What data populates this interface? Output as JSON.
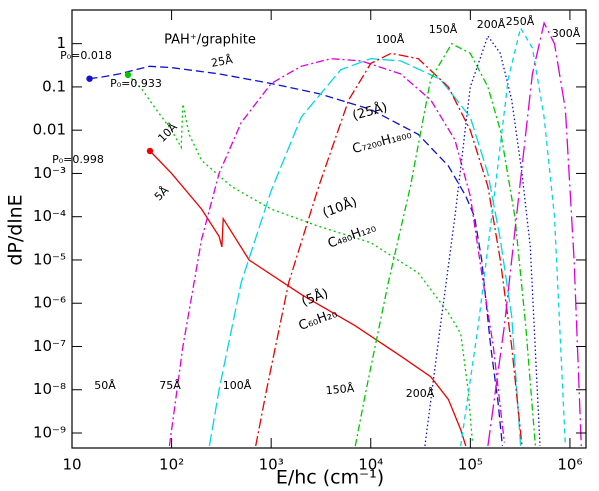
{
  "chart_data": {
    "type": "line",
    "xlabel": "E/hc   (cm⁻¹)",
    "ylabel": "dP/dlnE",
    "xscale": "log",
    "yscale": "log",
    "xlim": [
      10,
      1450000
    ],
    "ylim": [
      4.5e-10,
      6
    ],
    "xticks": [
      10,
      {
        "value": 100,
        "label": "10²"
      },
      {
        "value": 1000,
        "label": "10³"
      },
      {
        "value": 10000,
        "label": "10⁴"
      },
      {
        "value": 100000,
        "label": "10⁵"
      },
      {
        "value": 1000000,
        "label": "10⁶"
      }
    ],
    "yticks": [
      1,
      0.1,
      0.01,
      {
        "value": 0.001,
        "label": "10⁻³"
      },
      {
        "value": 0.0001,
        "label": "10⁻⁴"
      },
      {
        "value": 1e-05,
        "label": "10⁻⁵"
      },
      {
        "value": 1e-06,
        "label": "10⁻⁶"
      },
      {
        "value": 1e-07,
        "label": "10⁻⁷"
      },
      {
        "value": 1e-08,
        "label": "10⁻⁸"
      },
      {
        "value": 1e-09,
        "label": "10⁻⁹"
      }
    ],
    "series": [
      {
        "color": "#1010d0",
        "dash": "8,4",
        "start_marker": true,
        "x": [
          15,
          20,
          30,
          35,
          60,
          100,
          300,
          1000,
          3000,
          10000,
          30000,
          60000,
          90000,
          110000,
          130000,
          160000,
          190000,
          210000
        ],
        "values": [
          0.155,
          0.17,
          0.2,
          0.22,
          0.3,
          0.28,
          0.2,
          0.12,
          0.07,
          0.03,
          0.008,
          0.0015,
          0.0003,
          0.0001,
          1e-05,
          1e-07,
          5e-09,
          5e-10
        ]
      },
      {
        "color": "#00c800",
        "dash": "2,3",
        "start_marker": true,
        "x": [
          36.5,
          50,
          70,
          100,
          125,
          130,
          150,
          200,
          400,
          1000,
          3000,
          10000,
          30000,
          60000,
          80000,
          95000,
          105000
        ],
        "values": [
          0.19,
          0.09,
          0.03,
          0.01,
          0.004,
          0.04,
          0.008,
          0.002,
          0.0005,
          0.00015,
          6e-05,
          2.5e-05,
          5e-06,
          6e-07,
          2e-07,
          1e-08,
          6e-10
        ]
      },
      {
        "color": "#ee0000",
        "dash": "",
        "start_marker": true,
        "x": [
          60.7,
          100,
          200,
          300,
          320,
          330,
          600,
          2000,
          7000,
          20000,
          40000,
          60000,
          80000,
          90000
        ],
        "values": [
          0.0033,
          0.001,
          0.00015,
          3.5e-05,
          2e-05,
          9e-05,
          1e-05,
          1.6e-06,
          3e-07,
          6e-08,
          2e-08,
          6e-09,
          1.2e-09,
          5e-10
        ]
      },
      {
        "color": "#dd00dd",
        "dash": "8,3,2,3",
        "x": [
          95,
          130,
          200,
          300,
          500,
          1000,
          2000,
          4000,
          8000,
          20000,
          40000,
          70000,
          100000,
          130000,
          170000,
          220000
        ],
        "values": [
          5e-10,
          1e-07,
          3e-05,
          0.001,
          0.015,
          0.12,
          0.3,
          0.45,
          0.4,
          0.2,
          0.05,
          0.006,
          0.0003,
          5e-06,
          1e-07,
          6e-10
        ]
      },
      {
        "color": "#00d8e8",
        "dash": "12,4",
        "x": [
          240,
          300,
          500,
          1000,
          2000,
          5000,
          10000,
          20000,
          50000,
          100000,
          150000,
          200000,
          260000,
          320000
        ],
        "values": [
          5e-10,
          1e-08,
          3e-06,
          0.0004,
          0.02,
          0.25,
          0.45,
          0.4,
          0.15,
          0.02,
          0.001,
          3e-05,
          5e-07,
          5e-10
        ]
      },
      {
        "color": "#ee0000",
        "dash": "10,3,2,3",
        "x": [
          700,
          900,
          1500,
          3000,
          6000,
          10000,
          16000,
          30000,
          60000,
          100000,
          150000,
          200000,
          260000,
          330000
        ],
        "values": [
          5e-10,
          1e-08,
          3e-06,
          0.0005,
          0.05,
          0.35,
          0.6,
          0.45,
          0.1,
          0.01,
          0.0005,
          1e-05,
          1e-07,
          5e-10
        ]
      },
      {
        "color": "#00c800",
        "dash": "7,3,2,3",
        "x": [
          7000,
          9000,
          15000,
          25000,
          40000,
          65000,
          100000,
          150000,
          200000,
          280000,
          360000,
          450000
        ],
        "values": [
          5e-10,
          1e-08,
          3e-06,
          0.0005,
          0.15,
          1,
          0.6,
          0.1,
          0.01,
          0.0001,
          3e-07,
          5e-10
        ]
      },
      {
        "color": "#1010d0",
        "dash": "1.5,2.5",
        "x": [
          35000,
          50000,
          70000,
          100000,
          150000,
          200000,
          260000,
          330000,
          400000,
          500000
        ],
        "values": [
          5e-10,
          3e-07,
          0.0001,
          0.1,
          1.5,
          0.6,
          0.05,
          0.001,
          2e-05,
          5e-10
        ]
      },
      {
        "color": "#00d8e8",
        "dash": "5,4",
        "x": [
          80000,
          120000,
          170000,
          240000,
          320000,
          420000,
          550000,
          700000,
          900000
        ],
        "values": [
          5e-10,
          3e-07,
          0.0002,
          0.15,
          2.3,
          0.8,
          0.02,
          0.0001,
          5e-10
        ]
      },
      {
        "color": "#dd00dd",
        "dash": "16,4,2,4",
        "x": [
          150000,
          220000,
          300000,
          420000,
          550000,
          700000,
          900000,
          1100000,
          1300000
        ],
        "values": [
          5e-10,
          3e-07,
          0.0002,
          0.2,
          3,
          1,
          0.03,
          1e-05,
          5e-10
        ]
      }
    ],
    "annotations": [
      "PAH⁺/graphite",
      "P₀=0.018",
      "P₀=0.933",
      "P₀=0.998",
      "25Å",
      "10Å",
      "5Å",
      "100Å",
      "150Å",
      "200Å",
      "250Å",
      "300Å",
      "50Å",
      "75Å",
      "100Å",
      "150Å",
      "200Å",
      "(25Å)",
      "C₇₂₀₀H₁₈₀₀",
      "(10Å)",
      "C₄₈₀H₁₂₀",
      "(5Å)",
      "C₆₀H₂₀"
    ]
  }
}
